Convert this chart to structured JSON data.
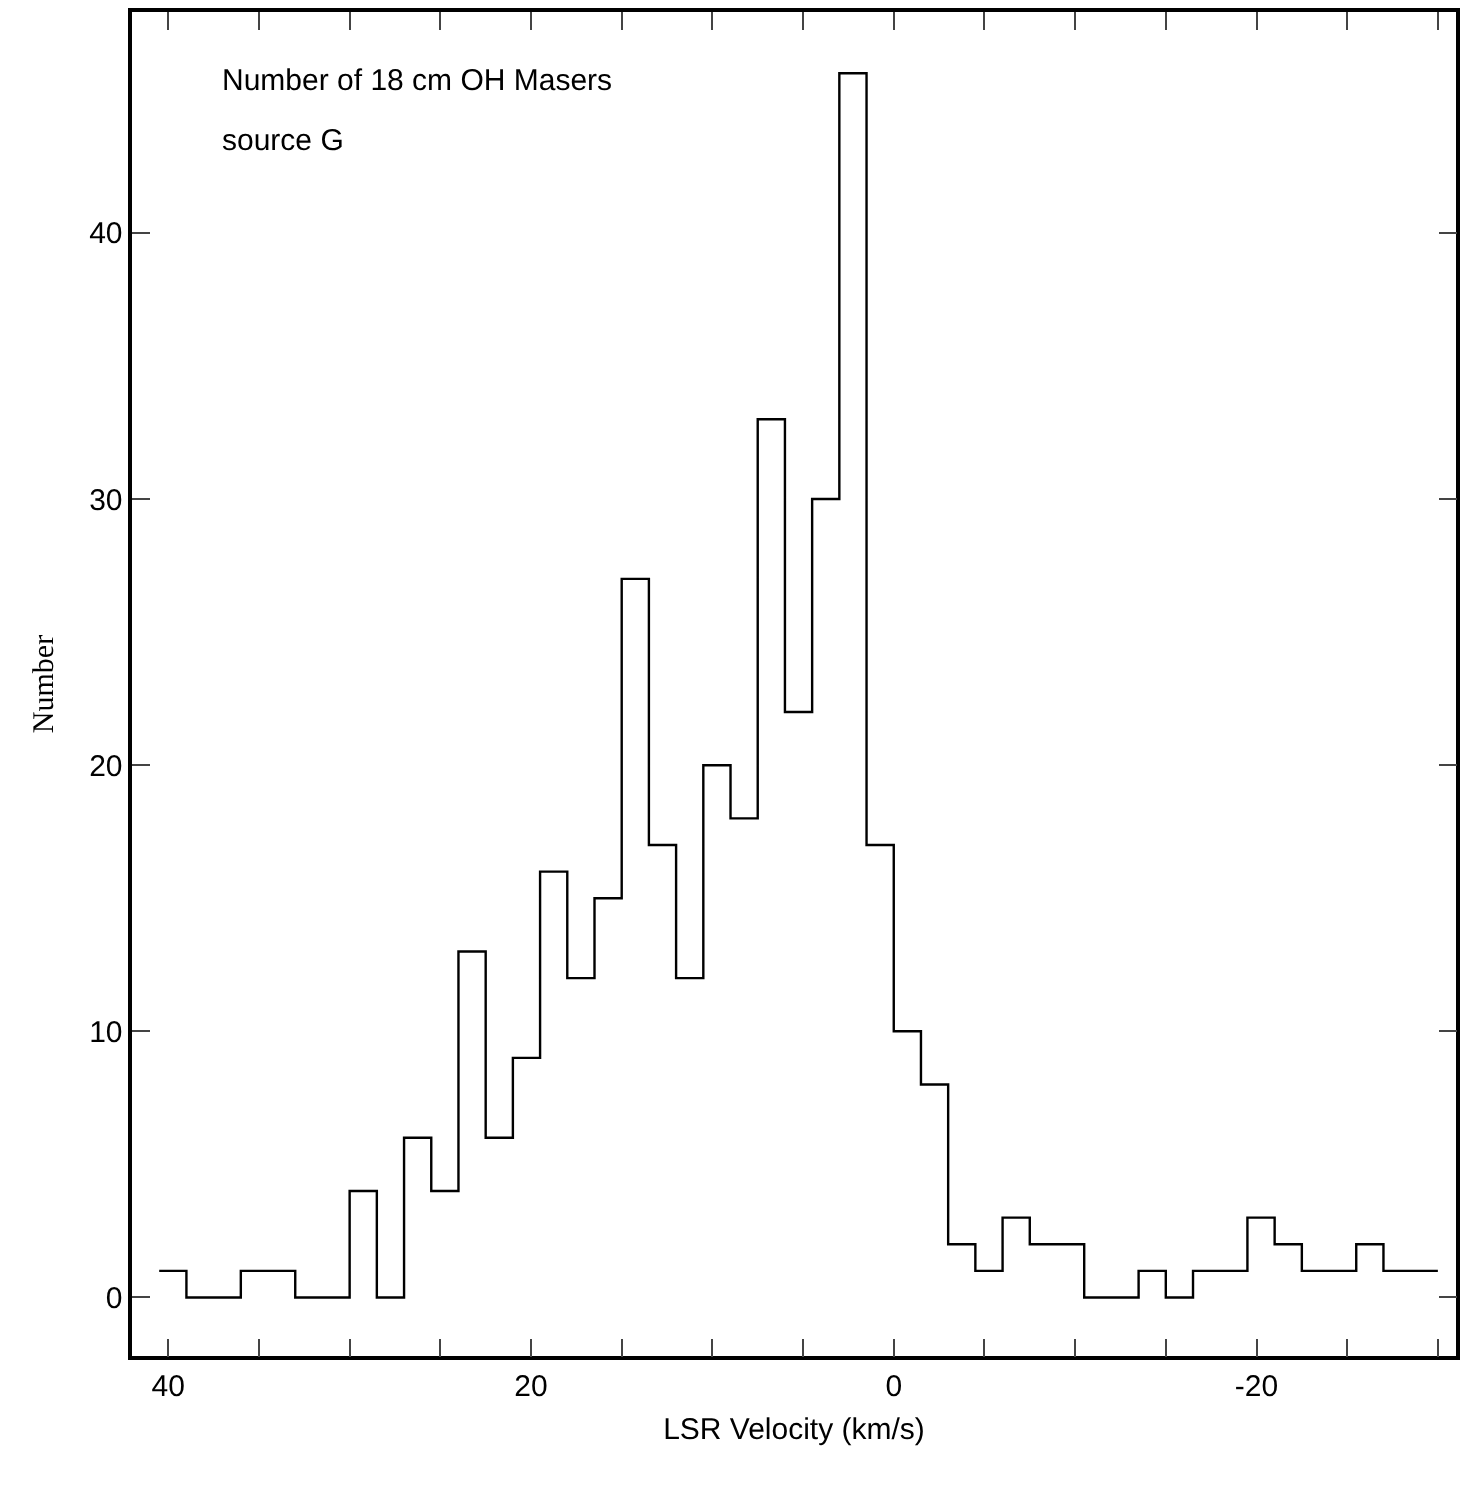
{
  "chart_data": {
    "type": "histogram",
    "xlabel": "LSR Velocity (km/s)",
    "ylabel": "Number",
    "annotations": [
      "Number of 18 cm OH Masers",
      "source G"
    ],
    "bins": [
      40.5,
      39,
      37.5,
      36,
      34.5,
      33,
      31.5,
      30,
      28.5,
      27,
      25.5,
      24,
      22.5,
      21,
      19.5,
      18,
      16.5,
      15,
      13.5,
      12,
      10.5,
      9,
      7.5,
      6,
      4.5,
      3,
      1.5,
      0,
      -1.5,
      -3,
      -4.5,
      -6,
      -7.5,
      -9,
      -10.5,
      -12,
      -13.5,
      -15,
      -16.5,
      -18,
      -19.5,
      -21,
      -22.5,
      -24,
      -25.5,
      -27,
      -28.5,
      -30
    ],
    "values": [
      1,
      0,
      0,
      1,
      1,
      0,
      0,
      4,
      0,
      6,
      4,
      13,
      6,
      9,
      16,
      12,
      15,
      27,
      17,
      12,
      20,
      18,
      33,
      22,
      30,
      46,
      17,
      10,
      8,
      2,
      1,
      3,
      2,
      2,
      0,
      0,
      1,
      0,
      1,
      1,
      3,
      2,
      1,
      1,
      2,
      1,
      1
    ],
    "color": "#000000",
    "xlim": [
      42,
      -31
    ],
    "xticks": [
      40,
      {
        "value": 35,
        "label": null
      },
      {
        "value": 30,
        "label": null
      },
      {
        "value": 25,
        "label": null
      },
      20,
      {
        "value": 15,
        "label": null
      },
      {
        "value": 10,
        "label": null
      },
      {
        "value": 5,
        "label": null
      },
      0,
      {
        "value": -5,
        "label": null
      },
      {
        "value": -10,
        "label": null
      },
      {
        "value": -15,
        "label": null
      },
      -20,
      {
        "value": -25,
        "label": null
      },
      {
        "value": -30,
        "label": null
      }
    ],
    "ylim": [
      -2.2,
      48.3
    ],
    "yticks": [
      0,
      10,
      20,
      30,
      40
    ],
    "grid": false
  }
}
